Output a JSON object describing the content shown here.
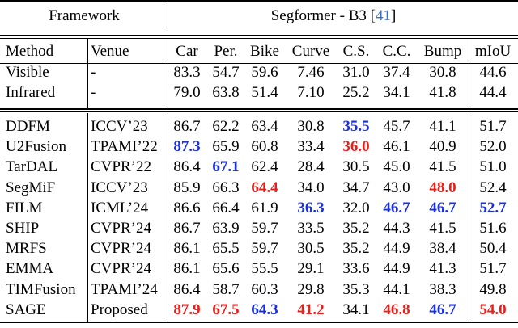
{
  "header": {
    "framework": "Framework",
    "segformer_text": "Segformer - B3 [",
    "segformer_cite": "41",
    "segformer_close": "]"
  },
  "columns": [
    "Method",
    "Venue",
    "Car",
    "Per.",
    "Bike",
    "Curve",
    "C.S.",
    "C.C.",
    "Bump",
    "mIoU"
  ],
  "baseline_rows": [
    {
      "method": "Visible",
      "venue": "-",
      "values": [
        "83.3",
        "54.7",
        "59.6",
        "7.46",
        "31.0",
        "37.4",
        "30.8",
        "44.6"
      ]
    },
    {
      "method": "Infrared",
      "venue": "-",
      "values": [
        "79.0",
        "63.8",
        "51.4",
        "7.10",
        "25.2",
        "34.1",
        "41.8",
        "44.4"
      ]
    }
  ],
  "method_rows": [
    {
      "method": "DDFM",
      "venue": "ICCV’23",
      "values": [
        "86.7",
        "62.2",
        "63.4",
        "30.8",
        "35.5",
        "45.7",
        "41.1",
        "51.7"
      ],
      "styles": [
        "plain",
        "plain",
        "plain",
        "plain",
        "blue",
        "plain",
        "plain",
        "plain"
      ]
    },
    {
      "method": "U2Fusion",
      "venue": "TPAMI’22",
      "values": [
        "87.3",
        "65.9",
        "60.8",
        "33.4",
        "36.0",
        "46.1",
        "40.9",
        "52.0"
      ],
      "styles": [
        "blue",
        "plain",
        "plain",
        "plain",
        "red",
        "plain",
        "plain",
        "plain"
      ]
    },
    {
      "method": "TarDAL",
      "venue": "CVPR’22",
      "values": [
        "86.4",
        "67.1",
        "62.4",
        "28.4",
        "30.5",
        "45.0",
        "41.5",
        "51.0"
      ],
      "styles": [
        "plain",
        "blue",
        "plain",
        "plain",
        "plain",
        "plain",
        "plain",
        "plain"
      ]
    },
    {
      "method": "SegMiF",
      "venue": "ICCV’23",
      "values": [
        "85.9",
        "66.3",
        "64.4",
        "34.0",
        "34.7",
        "43.0",
        "48.0",
        "52.4"
      ],
      "styles": [
        "plain",
        "plain",
        "red",
        "plain",
        "plain",
        "plain",
        "red",
        "plain"
      ]
    },
    {
      "method": "FILM",
      "venue": "ICML’24",
      "values": [
        "86.6",
        "66.4",
        "61.9",
        "36.3",
        "32.0",
        "46.7",
        "46.7",
        "52.7"
      ],
      "styles": [
        "plain",
        "plain",
        "plain",
        "blue",
        "plain",
        "blue",
        "blue",
        "blue"
      ]
    },
    {
      "method": "SHIP",
      "venue": "CVPR’24",
      "values": [
        "86.7",
        "63.9",
        "59.7",
        "33.5",
        "35.2",
        "44.3",
        "41.5",
        "51.6"
      ],
      "styles": [
        "plain",
        "plain",
        "plain",
        "plain",
        "plain",
        "plain",
        "plain",
        "plain"
      ]
    },
    {
      "method": "MRFS",
      "venue": "CVPR’24",
      "values": [
        "86.1",
        "65.5",
        "59.7",
        "30.5",
        "35.2",
        "44.9",
        "38.4",
        "50.4"
      ],
      "styles": [
        "plain",
        "plain",
        "plain",
        "plain",
        "plain",
        "plain",
        "plain",
        "plain"
      ]
    },
    {
      "method": "EMMA",
      "venue": "CVPR’24",
      "values": [
        "86.1",
        "65.6",
        "55.5",
        "29.1",
        "33.6",
        "44.9",
        "41.3",
        "51.7"
      ],
      "styles": [
        "plain",
        "plain",
        "plain",
        "plain",
        "plain",
        "plain",
        "plain",
        "plain"
      ]
    },
    {
      "method": "TIMFusion",
      "venue": "TPAMI’24",
      "values": [
        "86.4",
        "58.7",
        "60.3",
        "29.8",
        "35.3",
        "44.1",
        "38.3",
        "49.8"
      ],
      "styles": [
        "plain",
        "plain",
        "plain",
        "plain",
        "plain",
        "plain",
        "plain",
        "plain"
      ]
    },
    {
      "method": "SAGE",
      "venue": "Proposed",
      "values": [
        "87.9",
        "67.5",
        "64.3",
        "41.2",
        "34.1",
        "46.8",
        "46.7",
        "54.0"
      ],
      "styles": [
        "red",
        "red",
        "blue",
        "red",
        "plain",
        "red",
        "blue",
        "red"
      ]
    }
  ],
  "highlight_colors": {
    "red": "#e8201c",
    "blue": "#1a2ee6",
    "citation": "#3b6ec8"
  }
}
